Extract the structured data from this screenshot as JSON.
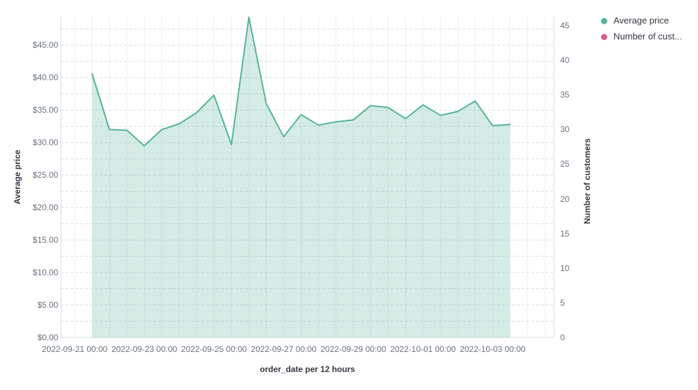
{
  "legend": {
    "position": "top-right",
    "items": [
      {
        "label": "Average price",
        "color": "#54B399"
      },
      {
        "label": "Number of cust...",
        "color": "#D36086"
      }
    ]
  },
  "chart_data": {
    "type": "area",
    "title": "",
    "xlabel": "order_date per 12 hours",
    "x_axis": {
      "title": "order_date per 12 hours",
      "interval": "12 hours",
      "tick_labels": [
        "2022-09-21 00:00",
        "2022-09-23 00:00",
        "2022-09-25 00:00",
        "2022-09-27 00:00",
        "2022-09-29 00:00",
        "2022-10-01 00:00",
        "2022-10-03 00:00"
      ]
    },
    "left_axis": {
      "title": "Average price",
      "range": [
        0,
        49.4
      ],
      "tick_labels": [
        "$45.00",
        "$40.00",
        "$35.00",
        "$30.00",
        "$25.00",
        "$20.00",
        "$15.00",
        "$10.00",
        "$5.00",
        "$0.00"
      ],
      "tick_values": [
        45,
        40,
        35,
        30,
        25,
        20,
        15,
        10,
        5,
        0
      ]
    },
    "right_axis": {
      "title": "Number of customers",
      "range": [
        0,
        46.3
      ],
      "tick_labels": [
        "45",
        "40",
        "35",
        "30",
        "25",
        "20",
        "15",
        "10",
        "5",
        "0"
      ],
      "tick_values": [
        45,
        40,
        35,
        30,
        25,
        20,
        15,
        10,
        5,
        0
      ]
    },
    "grid": {
      "horizontal_dashed_step": 2.5,
      "vertical_interval": "12h",
      "gridlines": true
    },
    "x": [
      "2022-09-21 12:00",
      "2022-09-22 00:00",
      "2022-09-22 12:00",
      "2022-09-23 00:00",
      "2022-09-23 12:00",
      "2022-09-24 00:00",
      "2022-09-24 12:00",
      "2022-09-25 00:00",
      "2022-09-25 12:00",
      "2022-09-26 00:00",
      "2022-09-26 12:00",
      "2022-09-27 00:00",
      "2022-09-27 12:00",
      "2022-09-28 00:00",
      "2022-09-28 12:00",
      "2022-09-29 00:00",
      "2022-09-29 12:00",
      "2022-09-30 00:00",
      "2022-09-30 12:00",
      "2022-10-01 00:00",
      "2022-10-01 12:00",
      "2022-10-02 00:00",
      "2022-10-02 12:00",
      "2022-10-03 00:00",
      "2022-10-03 12:00"
    ],
    "series": [
      {
        "name": "Average price",
        "axis": "left",
        "color": "#54B399",
        "fill_opacity": 0.25,
        "values": [
          40.6,
          32.0,
          31.9,
          29.5,
          32.0,
          32.9,
          34.6,
          37.3,
          29.7,
          49.3,
          36.0,
          30.9,
          34.3,
          32.7,
          33.2,
          33.5,
          35.7,
          35.4,
          33.7,
          35.8,
          34.2,
          34.8,
          36.4,
          32.6,
          32.8
        ]
      },
      {
        "name": "Number of customers",
        "axis": "right",
        "color": "#D36086",
        "values": []
      }
    ]
  }
}
